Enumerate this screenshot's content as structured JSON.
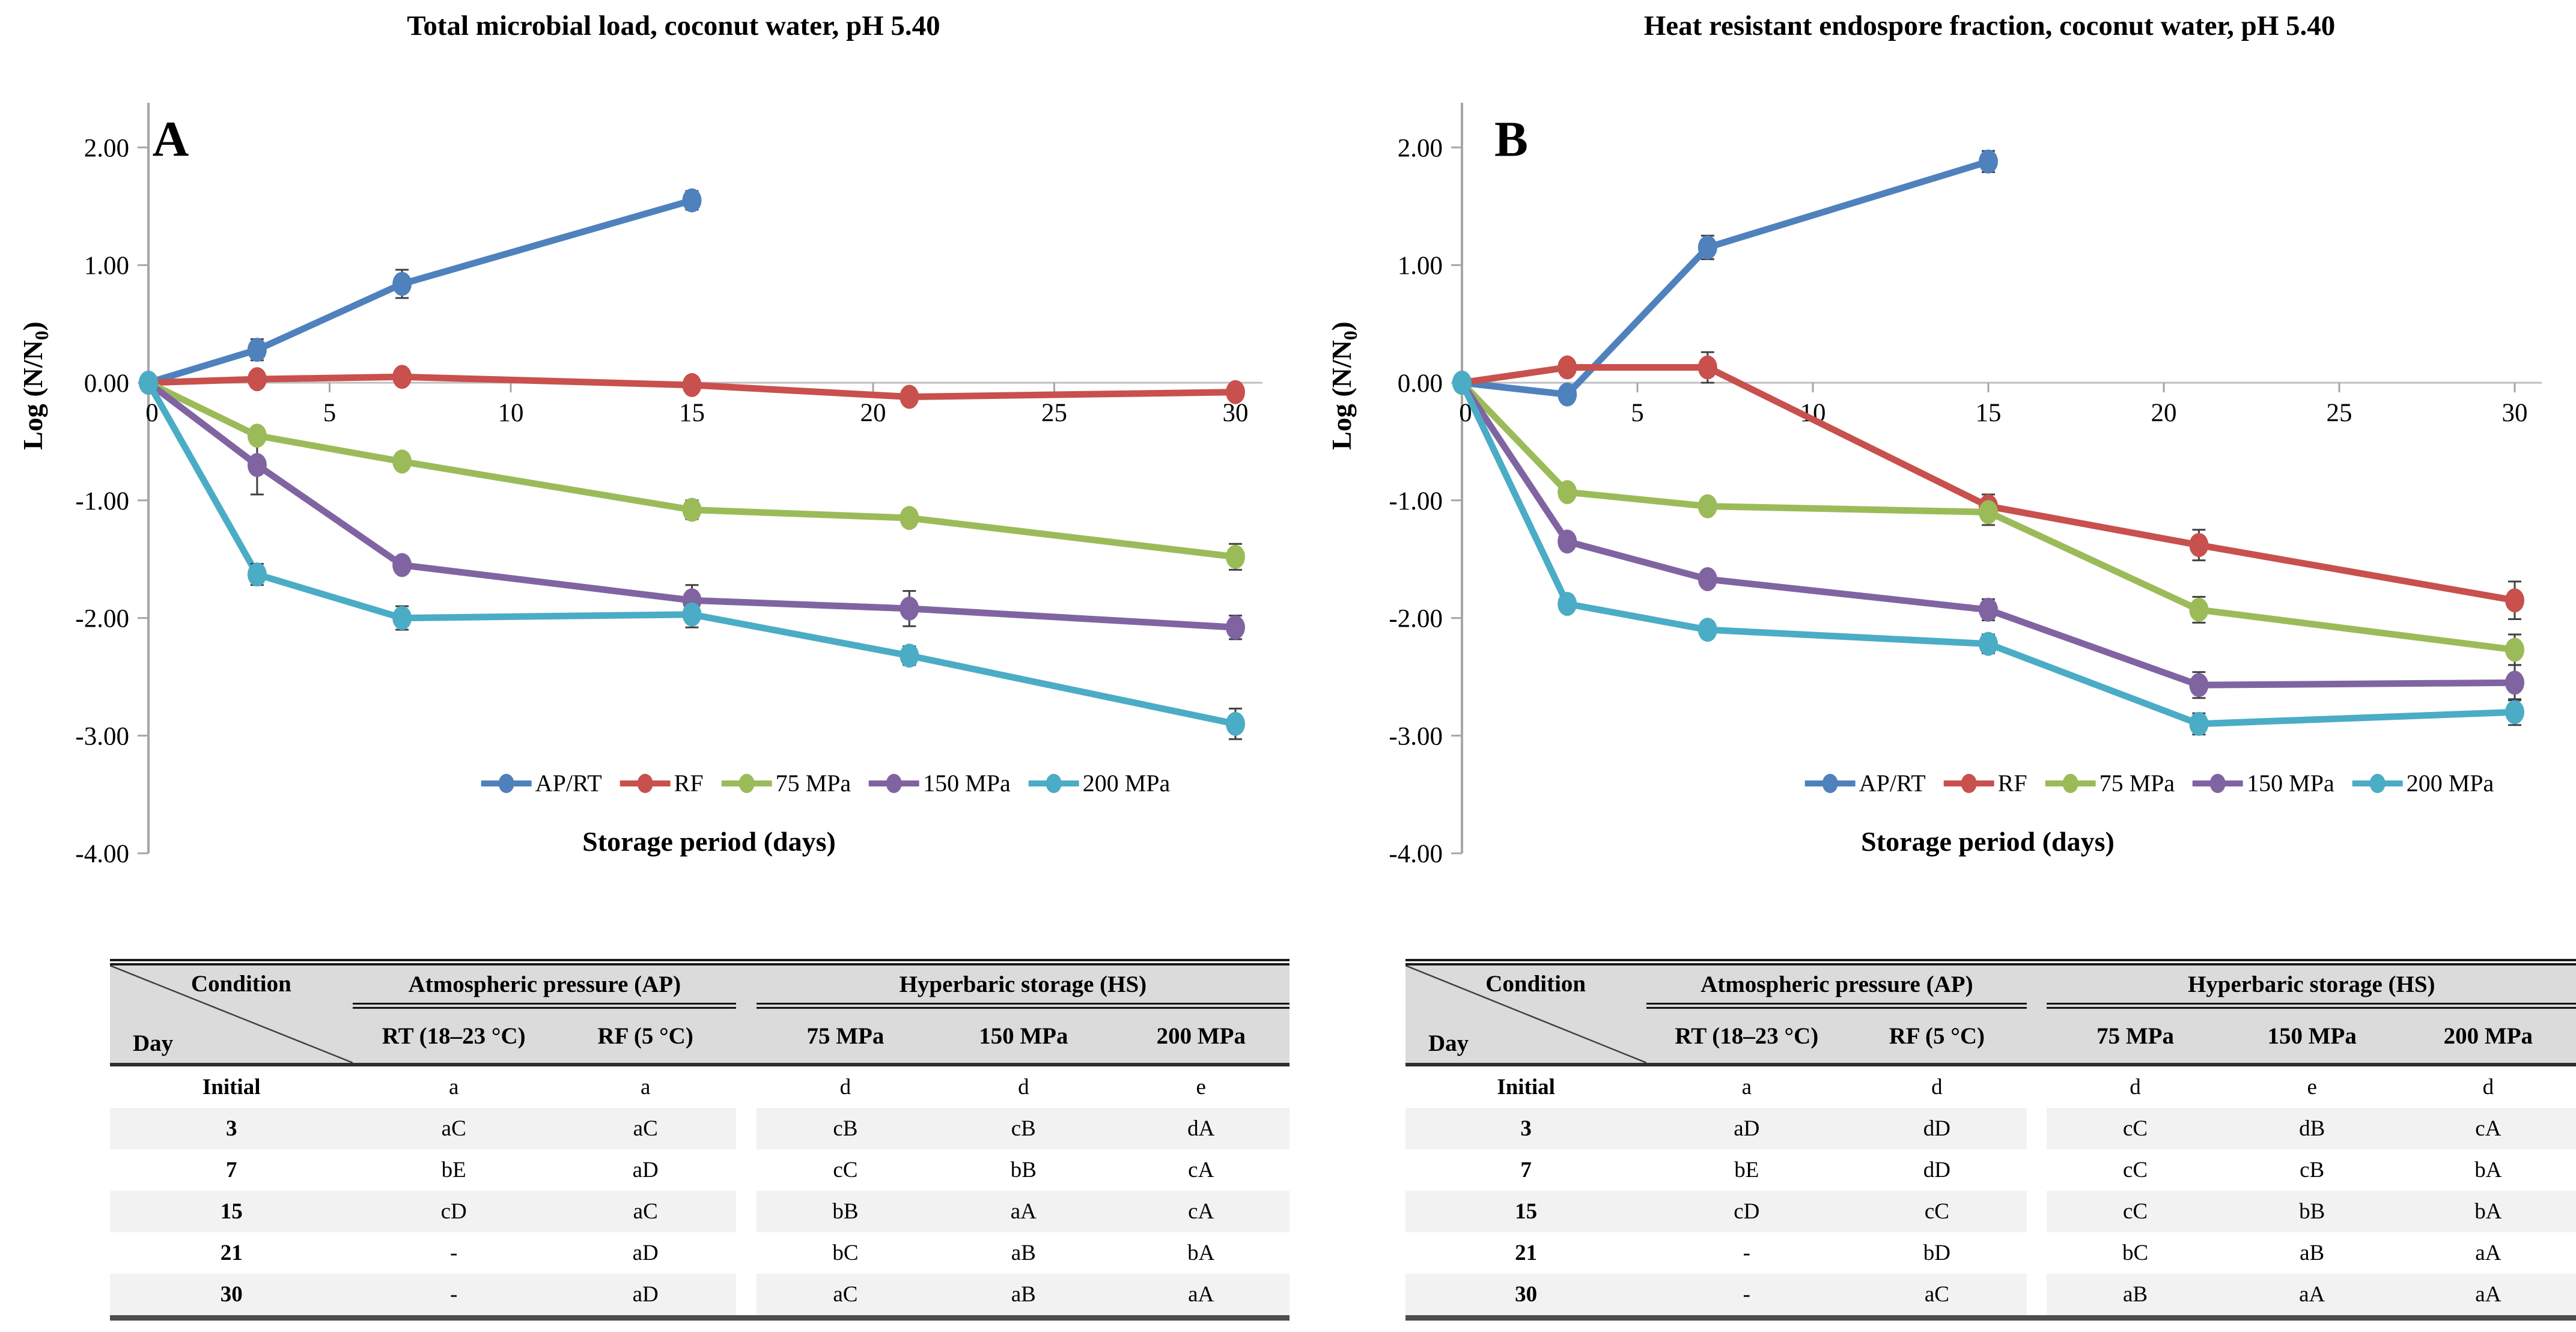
{
  "figure": {
    "background": "#FFFFFF",
    "panels": [
      {
        "label": "A",
        "title": "Total microbial load, coconut water, pH 5.40",
        "xlabel": "Storage period (days)",
        "ylabel_prefix": "Log (N/N",
        "ylabel_sub": "0",
        "ylabel_suffix": ")"
      },
      {
        "label": "B",
        "title": "Heat resistant endospore fraction, coconut water, pH 5.40",
        "xlabel": "Storage period (days)",
        "ylabel_prefix": "Log (N/N",
        "ylabel_sub": "0",
        "ylabel_suffix": ")"
      }
    ]
  },
  "chart_data": [
    {
      "type": "line",
      "panel": "A",
      "title": "Total microbial load, coconut water, pH 5.40",
      "xlabel": "Storage period (days)",
      "ylabel": "Log (N/N0)",
      "xlim": [
        0,
        30
      ],
      "ylim": [
        -4.0,
        2.4
      ],
      "xticks": [
        0,
        5,
        10,
        15,
        20,
        25,
        30
      ],
      "yticks": [
        2,
        1,
        0,
        -1,
        -2,
        -3,
        -4
      ],
      "ytick_labels": [
        "2.00",
        "1.00",
        "0.00",
        "-1.00",
        "-2.00",
        "-3.00",
        "-4.00"
      ],
      "grid": false,
      "legend_position": "bottom",
      "legend": [
        "AP/RT",
        "RF",
        "75 MPa",
        "150 MPa",
        "200 MPa"
      ],
      "series": [
        {
          "name": "AP/RT",
          "color": "#4F81BD",
          "x": [
            0,
            3,
            7,
            15
          ],
          "y": [
            0,
            0.28,
            0.84,
            1.55
          ],
          "err": [
            0,
            0.09,
            0.12,
            0.08
          ]
        },
        {
          "name": "RF",
          "color": "#C8504D",
          "x": [
            0,
            3,
            7,
            15,
            21,
            30
          ],
          "y": [
            0,
            0.03,
            0.05,
            -0.02,
            -0.12,
            -0.08
          ],
          "err": [
            0,
            0.04,
            0.05,
            0.03,
            0.04,
            0.04
          ]
        },
        {
          "name": "75 MPa",
          "color": "#9BBB59",
          "x": [
            0,
            3,
            7,
            15,
            21,
            30
          ],
          "y": [
            0,
            -0.45,
            -0.67,
            -1.08,
            -1.15,
            -1.48
          ],
          "err": [
            0,
            0.05,
            0.04,
            0.08,
            0.07,
            0.11
          ]
        },
        {
          "name": "150 MPa",
          "color": "#8064A2",
          "x": [
            0,
            3,
            7,
            15,
            21,
            30
          ],
          "y": [
            0,
            -0.7,
            -1.55,
            -1.85,
            -1.92,
            -2.08
          ],
          "err": [
            0,
            0.25,
            0.05,
            0.13,
            0.15,
            0.1
          ]
        },
        {
          "name": "200 MPa",
          "color": "#4BACC6",
          "x": [
            0,
            3,
            7,
            15,
            21,
            30
          ],
          "y": [
            0,
            -1.63,
            -2.0,
            -1.97,
            -2.32,
            -2.9
          ],
          "err": [
            0,
            0.09,
            0.1,
            0.11,
            0.08,
            0.13
          ]
        }
      ]
    },
    {
      "type": "line",
      "panel": "B",
      "title": "Heat resistant endospore fraction, coconut water, pH 5.40",
      "xlabel": "Storage period (days)",
      "ylabel": "Log (N/N0)",
      "xlim": [
        0,
        30
      ],
      "ylim": [
        -4.0,
        2.4
      ],
      "xticks": [
        0,
        5,
        10,
        15,
        20,
        25,
        30
      ],
      "yticks": [
        2,
        1,
        0,
        -1,
        -2,
        -3,
        -4
      ],
      "ytick_labels": [
        "2.00",
        "1.00",
        "0.00",
        "-1.00",
        "-2.00",
        "-3.00",
        "-4.00"
      ],
      "grid": false,
      "legend_position": "bottom",
      "legend": [
        "AP/RT",
        "RF",
        "75 MPa",
        "150 MPa",
        "200 MPa"
      ],
      "series": [
        {
          "name": "AP/RT",
          "color": "#4F81BD",
          "x": [
            0,
            3,
            7,
            15
          ],
          "y": [
            0,
            -0.1,
            1.15,
            1.88
          ],
          "err": [
            0,
            0.04,
            0.1,
            0.09
          ]
        },
        {
          "name": "RF",
          "color": "#C8504D",
          "x": [
            0,
            3,
            7,
            15,
            21,
            30
          ],
          "y": [
            0,
            0.13,
            0.13,
            -1.05,
            -1.38,
            -1.85
          ],
          "err": [
            0,
            0.05,
            0.13,
            0.1,
            0.13,
            0.16
          ]
        },
        {
          "name": "75 MPa",
          "color": "#9BBB59",
          "x": [
            0,
            3,
            7,
            15,
            21,
            30
          ],
          "y": [
            0,
            -0.93,
            -1.05,
            -1.1,
            -1.93,
            -2.27
          ],
          "err": [
            0,
            0.06,
            0.06,
            0.11,
            0.11,
            0.13
          ]
        },
        {
          "name": "150 MPa",
          "color": "#8064A2",
          "x": [
            0,
            3,
            7,
            15,
            21,
            30
          ],
          "y": [
            0,
            -1.35,
            -1.67,
            -1.93,
            -2.57,
            -2.55
          ],
          "err": [
            0,
            0.05,
            0.06,
            0.09,
            0.11,
            0.15
          ]
        },
        {
          "name": "200 MPa",
          "color": "#4BACC6",
          "x": [
            0,
            3,
            7,
            15,
            21,
            30
          ],
          "y": [
            0,
            -1.88,
            -2.1,
            -2.22,
            -2.9,
            -2.8
          ],
          "err": [
            0,
            0.07,
            0.07,
            0.08,
            0.09,
            0.11
          ]
        }
      ]
    }
  ],
  "tables": [
    {
      "panel": "A",
      "corner_top": "Condition",
      "corner_bottom": "Day",
      "group_headers": [
        "Atmospheric pressure (AP)",
        "Hyperbaric storage (HS)"
      ],
      "col_headers": [
        "RT (18–23 °C)",
        "RF (5 °C)",
        "75 MPa",
        "150 MPa",
        "200 MPa"
      ],
      "rows": [
        {
          "day": "Initial",
          "values": [
            "a",
            "a",
            "d",
            "d",
            "e"
          ]
        },
        {
          "day": "3",
          "values": [
            "aC",
            "aC",
            "cB",
            "cB",
            "dA"
          ]
        },
        {
          "day": "7",
          "values": [
            "bE",
            "aD",
            "cC",
            "bB",
            "cA"
          ]
        },
        {
          "day": "15",
          "values": [
            "cD",
            "aC",
            "bB",
            "aA",
            "cA"
          ]
        },
        {
          "day": "21",
          "values": [
            "-",
            "aD",
            "bC",
            "aB",
            "bA"
          ]
        },
        {
          "day": "30",
          "values": [
            "-",
            "aD",
            "aC",
            "aB",
            "aA"
          ]
        }
      ]
    },
    {
      "panel": "B",
      "corner_top": "Condition",
      "corner_bottom": "Day",
      "group_headers": [
        "Atmospheric pressure (AP)",
        "Hyperbaric storage (HS)"
      ],
      "col_headers": [
        "RT (18–23 °C)",
        "RF (5 °C)",
        "75 MPa",
        "150 MPa",
        "200 MPa"
      ],
      "rows": [
        {
          "day": "Initial",
          "values": [
            "a",
            "d",
            "d",
            "e",
            "d"
          ]
        },
        {
          "day": "3",
          "values": [
            "aD",
            "dD",
            "cC",
            "dB",
            "cA"
          ]
        },
        {
          "day": "7",
          "values": [
            "bE",
            "dD",
            "cC",
            "cB",
            "bA"
          ]
        },
        {
          "day": "15",
          "values": [
            "cD",
            "cC",
            "cC",
            "bB",
            "bA"
          ]
        },
        {
          "day": "21",
          "values": [
            "-",
            "bD",
            "bC",
            "aB",
            "aA"
          ]
        },
        {
          "day": "30",
          "values": [
            "-",
            "aC",
            "aB",
            "aA",
            "aA"
          ]
        }
      ]
    }
  ],
  "palette": {
    "ap_rt": "#4F81BD",
    "rf": "#C8504D",
    "mpa_75": "#9BBB59",
    "mpa_150": "#8064A2",
    "mpa_200": "#4BACC6",
    "axis_line": "#A6A6A6",
    "zero_line": "#BFBFBF",
    "error_bar": "#404040",
    "table_header_bg": "#DBDBDB",
    "table_stripe_bg": "#F2F2F2"
  }
}
